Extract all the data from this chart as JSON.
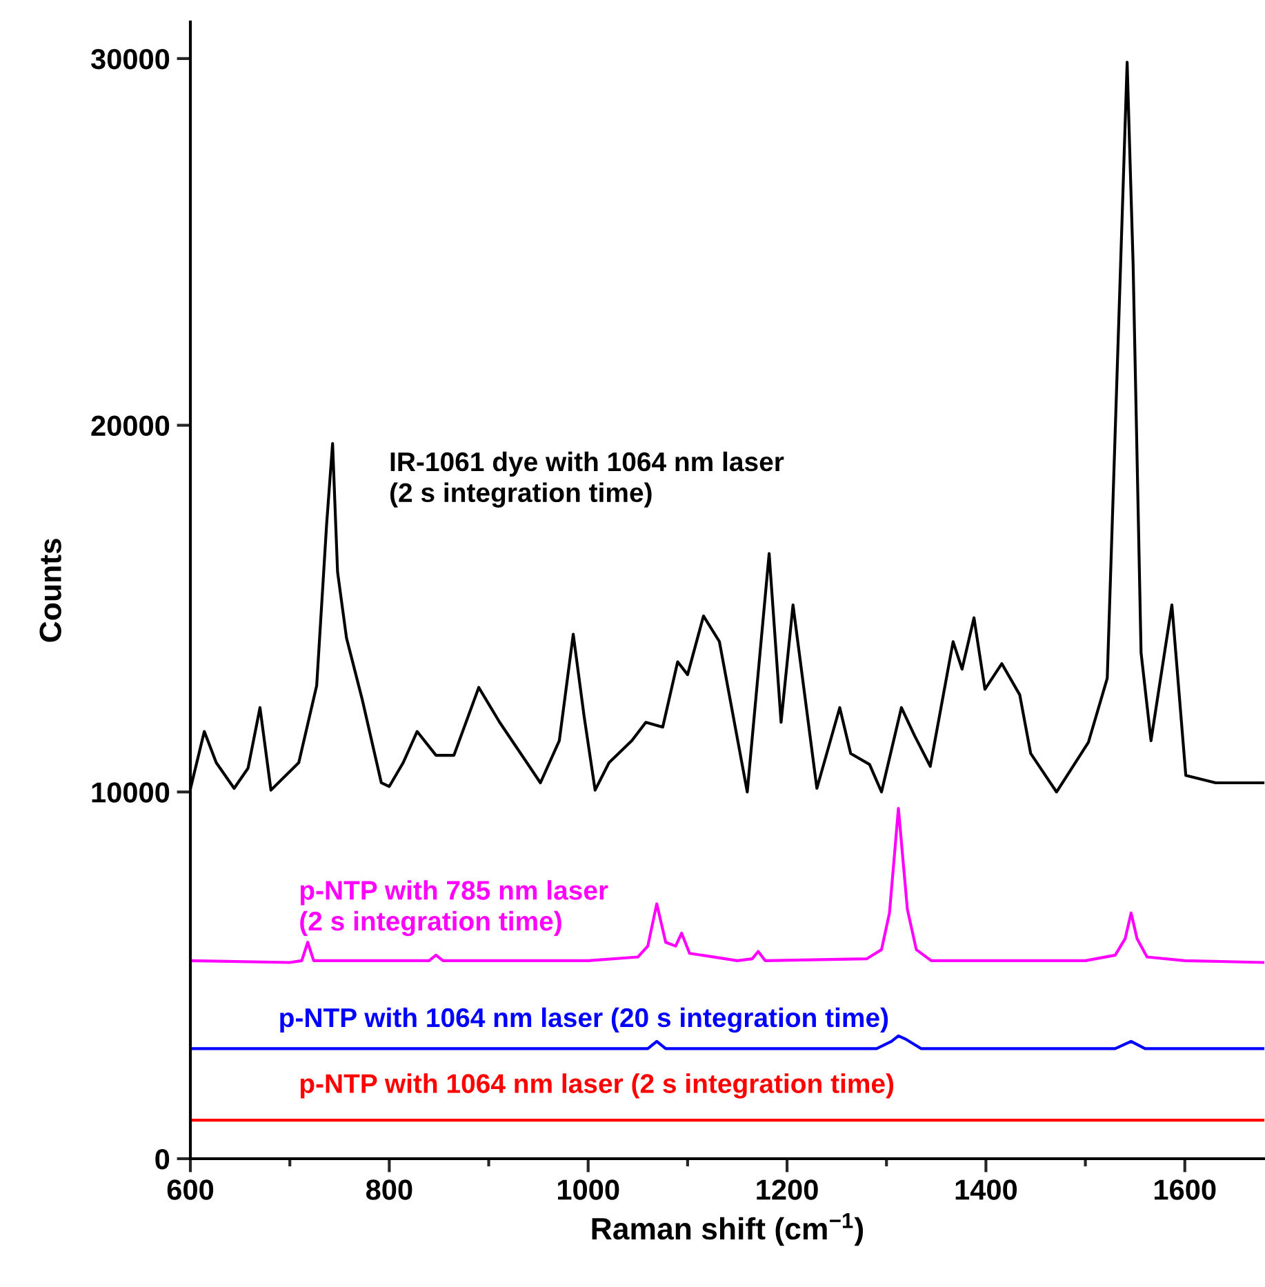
{
  "chart_data": {
    "type": "line",
    "xlabel": "Raman shift (cm$^{−1}$)",
    "ylabel": "Counts",
    "xlim": [
      600,
      1680
    ],
    "ylim": [
      0,
      31000
    ],
    "xticks": [
      600,
      {
        "value": 700,
        "label": null
      },
      800,
      {
        "value": 900,
        "label": null
      },
      1000,
      {
        "value": 1100,
        "label": null
      },
      1200,
      {
        "value": 1300,
        "label": null
      },
      1400,
      {
        "value": 1500,
        "label": null
      },
      1600
    ],
    "yticks": [
      0,
      10000,
      20000,
      30000
    ],
    "grid": false,
    "legend": false,
    "marker": "none",
    "line_style": "solid",
    "series": [
      {
        "name": "IR-1061 dye with 1064 nm laser\n(2 s integration time)",
        "color": "#000000",
        "x": [
          600,
          614,
          626,
          644,
          658,
          670,
          681,
          709,
          727,
          737,
          743,
          748,
          757,
          773,
          792,
          800,
          814,
          828,
          847,
          865,
          890,
          911,
          952,
          971,
          985,
          996,
          1007,
          1021,
          1044,
          1058,
          1075,
          1090,
          1100,
          1116,
          1132,
          1160,
          1182,
          1194,
          1206,
          1230,
          1253,
          1264,
          1283,
          1295,
          1315,
          1328,
          1344,
          1367,
          1376,
          1388,
          1399,
          1416,
          1434,
          1445,
          1471,
          1503,
          1522,
          1532,
          1542,
          1548,
          1556,
          1566,
          1587,
          1601,
          1631,
          1680
        ],
        "values": [
          10080,
          11650,
          10800,
          10100,
          10650,
          12300,
          10050,
          10800,
          12900,
          17300,
          19500,
          16000,
          14200,
          12500,
          10250,
          10150,
          10800,
          11650,
          11000,
          11000,
          12850,
          11900,
          10250,
          11400,
          14300,
          12050,
          10050,
          10800,
          11400,
          11900,
          11770,
          13550,
          13200,
          14800,
          14100,
          10000,
          16500,
          11900,
          15100,
          10100,
          12300,
          11050,
          10750,
          10000,
          12300,
          11550,
          10700,
          14100,
          13350,
          14750,
          12800,
          13500,
          12650,
          11050,
          10000,
          11350,
          13100,
          21500,
          29900,
          24400,
          13800,
          11400,
          15100,
          10450,
          10250,
          10250
        ]
      },
      {
        "name": "p-NTP with 785 nm laser\n(2 s integration time)",
        "color": "#ff00ff",
        "x": [
          600,
          700,
          712,
          718,
          724,
          840,
          847,
          854,
          1000,
          1050,
          1060,
          1069,
          1078,
          1088,
          1094,
          1102,
          1150,
          1165,
          1171,
          1178,
          1280,
          1295,
          1303,
          1312,
          1321,
          1330,
          1345,
          1500,
          1530,
          1540,
          1546,
          1552,
          1562,
          1600,
          1680
        ],
        "values": [
          5400,
          5350,
          5400,
          5900,
          5400,
          5400,
          5550,
          5400,
          5400,
          5500,
          5800,
          6950,
          5900,
          5800,
          6150,
          5600,
          5400,
          5450,
          5650,
          5400,
          5450,
          5700,
          6700,
          9550,
          6800,
          5700,
          5400,
          5400,
          5550,
          6000,
          6700,
          6000,
          5500,
          5400,
          5350
        ]
      },
      {
        "name": "p-NTP with 1064 nm laser (20 s integration time)",
        "color": "#0000ff",
        "x": [
          600,
          1060,
          1069,
          1078,
          1290,
          1305,
          1312,
          1320,
          1335,
          1530,
          1546,
          1560,
          1680
        ],
        "values": [
          3000,
          3000,
          3200,
          3000,
          3000,
          3200,
          3350,
          3250,
          3000,
          3000,
          3200,
          3000,
          3000
        ]
      },
      {
        "name": "p-NTP with 1064 nm laser (2 s integration time)",
        "color": "#ff0000",
        "x": [
          600,
          1680
        ],
        "values": [
          1050,
          1050
        ]
      }
    ]
  }
}
